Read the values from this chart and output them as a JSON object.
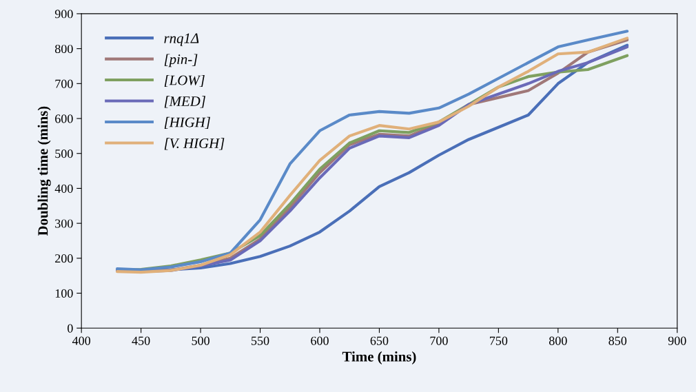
{
  "chart_data": {
    "type": "line",
    "xlabel": "Time (mins)",
    "ylabel": "Doubling time (mins)",
    "x": [
      430,
      450,
      475,
      500,
      525,
      550,
      575,
      600,
      625,
      650,
      675,
      700,
      725,
      750,
      775,
      800,
      825,
      858
    ],
    "xlim": [
      400,
      900
    ],
    "xticks": [
      400,
      450,
      500,
      550,
      600,
      650,
      700,
      750,
      800,
      850,
      900
    ],
    "ylim": [
      0,
      900
    ],
    "yticks": [
      0,
      100,
      200,
      300,
      400,
      500,
      600,
      700,
      800,
      900
    ],
    "grid": false,
    "legend": "top left",
    "marker": "none",
    "line_style": "solid",
    "series": [
      {
        "name": "rnq1Δ",
        "color": "#4a6fb8",
        "values": [
          165,
          165,
          167,
          172,
          185,
          205,
          235,
          275,
          335,
          405,
          445,
          495,
          540,
          575,
          610,
          700,
          760,
          810
        ]
      },
      {
        "name": "[pin-]",
        "color": "#a07878",
        "values": [
          165,
          162,
          166,
          180,
          200,
          255,
          345,
          445,
          525,
          555,
          550,
          585,
          640,
          660,
          680,
          730,
          790,
          825
        ]
      },
      {
        "name": "[LOW]",
        "color": "#7fa060",
        "values": [
          165,
          168,
          178,
          195,
          215,
          265,
          355,
          455,
          530,
          565,
          560,
          590,
          640,
          690,
          720,
          733,
          740,
          780
        ]
      },
      {
        "name": "[MED]",
        "color": "#6a6ab8",
        "values": [
          165,
          162,
          165,
          178,
          195,
          250,
          335,
          430,
          515,
          550,
          545,
          580,
          640,
          670,
          700,
          735,
          760,
          805
        ]
      },
      {
        "name": "[HIGH]",
        "color": "#5a8ac8",
        "values": [
          170,
          167,
          175,
          190,
          215,
          310,
          470,
          565,
          610,
          620,
          615,
          630,
          670,
          715,
          760,
          805,
          825,
          850
        ]
      },
      {
        "name": "[V. HIGH]",
        "color": "#e0b07a",
        "values": [
          162,
          160,
          165,
          180,
          210,
          275,
          380,
          480,
          550,
          580,
          570,
          590,
          635,
          690,
          735,
          785,
          790,
          830
        ]
      }
    ]
  }
}
